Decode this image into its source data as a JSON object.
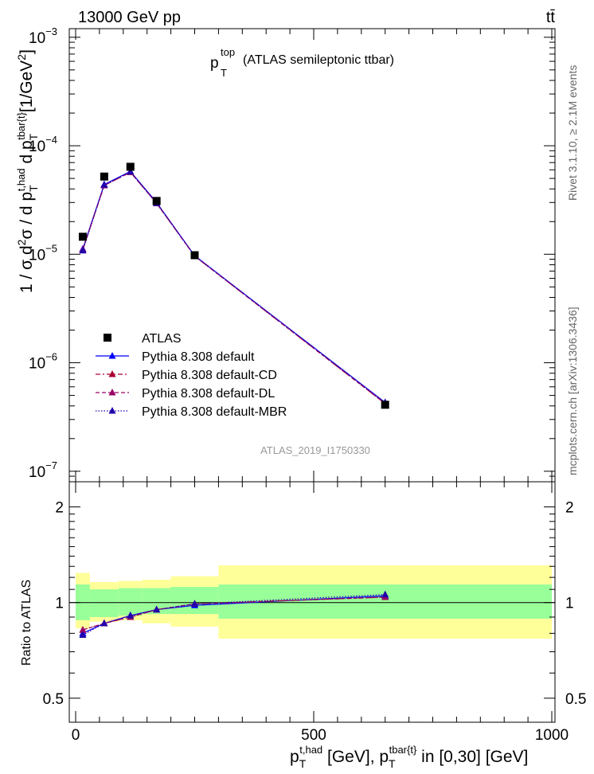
{
  "header": {
    "left": "13000 GeV pp",
    "right": "tt̄"
  },
  "plot_title": {
    "main": "p",
    "sup": "top",
    "sub": "T",
    "desc": "(ATLAS semileptonic ttbar)"
  },
  "side_labels": {
    "rivet": "Rivet 3.1.10, ≥ 2.1M events",
    "mcplots": "mcplots.cern.ch [arXiv:1306.3436]"
  },
  "analysis_id": "ATLAS_2019_I1750330",
  "axis_labels": {
    "y_main": "1 / σ d²σ / d p_T^{t,had} d p_T^{tbar{t}} [1/GeV²]",
    "y_ratio": "Ratio to ATLAS",
    "x": "p_T^{t,had} [GeV], p_T^{tbar{t}} in [0,30] [GeV]"
  },
  "colors": {
    "atlas": "#000000",
    "default": "#0000ff",
    "cd": "#aa0033",
    "dl": "#990066",
    "mbr": "#2200aa",
    "band_inner": "#99ff99",
    "band_outer": "#ffff99"
  },
  "chart_data": [
    {
      "type": "scatter",
      "id": "main",
      "xlim": [
        0,
        1000
      ],
      "ylim": [
        1e-07,
        0.001
      ],
      "yscale": "log",
      "x_ticks": [
        0,
        500,
        1000
      ],
      "y_ticks": [
        {
          "value": 1e-07,
          "base": "10",
          "exp": "−7"
        },
        {
          "value": 1e-06,
          "base": "10",
          "exp": "−6"
        },
        {
          "value": 1e-05,
          "base": "10",
          "exp": "−5"
        },
        {
          "value": 0.0001,
          "base": "10",
          "exp": "−4"
        },
        {
          "value": 0.001,
          "base": "10",
          "exp": "−3"
        }
      ],
      "legend_position": "bottom-left",
      "bins": [
        [
          0,
          30
        ],
        [
          30,
          90
        ],
        [
          90,
          140
        ],
        [
          140,
          200
        ],
        [
          200,
          300
        ],
        [
          300,
          1000
        ]
      ],
      "x": [
        15,
        60,
        115,
        170,
        250,
        650
      ],
      "series": [
        {
          "name": "ATLAS",
          "style": "data",
          "values": [
            1.45e-05,
            5.2e-05,
            6.4e-05,
            3.1e-05,
            9.8e-06,
            4.1e-07
          ]
        },
        {
          "name": "Pythia 8.308 default",
          "style": "solid",
          "color": "#0000ff",
          "values": [
            1.12e-05,
            4.4e-05,
            5.8e-05,
            3e-05,
            9.7e-06,
            4.3e-07
          ]
        },
        {
          "name": "Pythia 8.308 default-CD",
          "style": "dashdot",
          "color": "#aa0033",
          "values": [
            1.1e-05,
            4.3e-05,
            5.7e-05,
            2.95e-05,
            9.6e-06,
            4.2e-07
          ]
        },
        {
          "name": "Pythia 8.308 default-DL",
          "style": "dashed",
          "color": "#990066",
          "values": [
            1.1e-05,
            4.3e-05,
            5.7e-05,
            2.95e-05,
            9.6e-06,
            4.2e-07
          ]
        },
        {
          "name": "Pythia 8.308 default-MBR",
          "style": "dotted",
          "color": "#2200aa",
          "values": [
            1.08e-05,
            4.35e-05,
            5.75e-05,
            2.95e-05,
            9.65e-06,
            4.3e-07
          ]
        }
      ]
    },
    {
      "type": "scatter",
      "id": "ratio",
      "xlim": [
        0,
        1000
      ],
      "ylim": [
        0.5,
        2.0
      ],
      "yscale": "log",
      "x_ticks": [
        0,
        500,
        1000
      ],
      "y_ticks": [
        {
          "value": 0.5,
          "label": "0.5"
        },
        {
          "value": 1,
          "label": "1"
        },
        {
          "value": 2,
          "label": "2"
        }
      ],
      "bands": {
        "bins": [
          [
            0,
            30
          ],
          [
            30,
            90
          ],
          [
            90,
            140
          ],
          [
            140,
            200
          ],
          [
            200,
            300
          ],
          [
            300,
            1000
          ]
        ],
        "inner": [
          [
            0.88,
            1.14
          ],
          [
            0.9,
            1.1
          ],
          [
            0.91,
            1.11
          ],
          [
            0.92,
            1.11
          ],
          [
            0.92,
            1.12
          ],
          [
            0.89,
            1.14
          ]
        ],
        "outer": [
          [
            0.83,
            1.24
          ],
          [
            0.87,
            1.16
          ],
          [
            0.88,
            1.17
          ],
          [
            0.86,
            1.18
          ],
          [
            0.84,
            1.21
          ],
          [
            0.77,
            1.31
          ]
        ]
      },
      "x": [
        15,
        60,
        115,
        170,
        250,
        650
      ],
      "series": [
        {
          "name": "Pythia 8.308 default",
          "style": "solid",
          "color": "#0000ff",
          "values": [
            0.8,
            0.86,
            0.91,
            0.95,
            0.98,
            1.05
          ]
        },
        {
          "name": "Pythia 8.308 default-CD",
          "style": "dashdot",
          "color": "#aa0033",
          "values": [
            0.82,
            0.86,
            0.9,
            0.95,
            0.99,
            1.04
          ]
        },
        {
          "name": "Pythia 8.308 default-DL",
          "style": "dashed",
          "color": "#990066",
          "values": [
            0.82,
            0.86,
            0.9,
            0.95,
            0.99,
            1.04
          ]
        },
        {
          "name": "Pythia 8.308 default-MBR",
          "style": "dotted",
          "color": "#2200aa",
          "values": [
            0.79,
            0.86,
            0.91,
            0.95,
            0.99,
            1.06
          ]
        }
      ]
    }
  ]
}
